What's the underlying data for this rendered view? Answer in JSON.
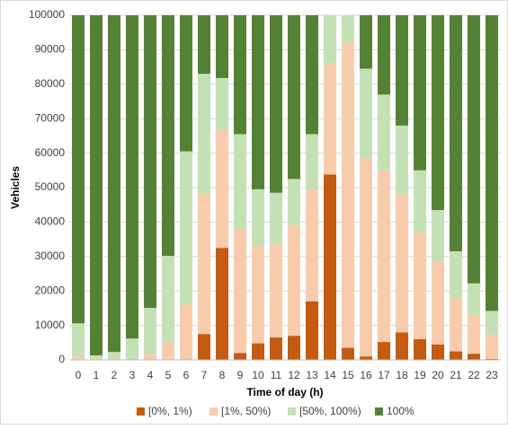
{
  "chart_data": {
    "type": "stacked_bar",
    "x_label": "Time of day (h)",
    "y_label": "Vehicles",
    "categories": [
      "0",
      "1",
      "2",
      "3",
      "4",
      "5",
      "6",
      "7",
      "8",
      "9",
      "10",
      "11",
      "12",
      "13",
      "14",
      "15",
      "16",
      "17",
      "18",
      "19",
      "20",
      "21",
      "22",
      "23"
    ],
    "series": [
      {
        "name": "[0%, 1%)",
        "color": "#c55a11",
        "values": [
          0,
          0,
          0,
          0,
          0,
          0,
          0,
          7500,
          32500,
          2000,
          4800,
          6500,
          7000,
          17000,
          53800,
          3500,
          1000,
          5200,
          8000,
          6000,
          4500,
          2500,
          1800,
          300
        ]
      },
      {
        "name": "[1%, 50%)",
        "color": "#f8cbad",
        "values": [
          800,
          200,
          100,
          0,
          1500,
          5000,
          16000,
          40500,
          34300,
          36000,
          28200,
          27000,
          32000,
          32500,
          32200,
          88500,
          57500,
          49800,
          40000,
          31000,
          24000,
          15500,
          11000,
          6900
        ]
      },
      {
        "name": "[50%, 100%)",
        "color": "#c5e0b4",
        "values": [
          9800,
          1100,
          2200,
          6200,
          13600,
          25200,
          44500,
          35000,
          15000,
          27500,
          16500,
          15000,
          13500,
          16000,
          14000,
          8000,
          26000,
          22000,
          20000,
          18000,
          15000,
          13500,
          9400,
          7000
        ]
      },
      {
        "name": "100%",
        "color": "#548235",
        "values": [
          89400,
          98700,
          97700,
          93800,
          84900,
          69800,
          39500,
          17000,
          18200,
          34500,
          50500,
          51500,
          47500,
          34500,
          0,
          0,
          15500,
          23000,
          32000,
          45000,
          56500,
          68500,
          77800,
          85800
        ]
      }
    ],
    "ylim": [
      0,
      100000
    ],
    "yticks": [
      0,
      10000,
      20000,
      30000,
      40000,
      50000,
      60000,
      70000,
      80000,
      90000,
      100000
    ],
    "grid": true,
    "legend": "bottom"
  }
}
